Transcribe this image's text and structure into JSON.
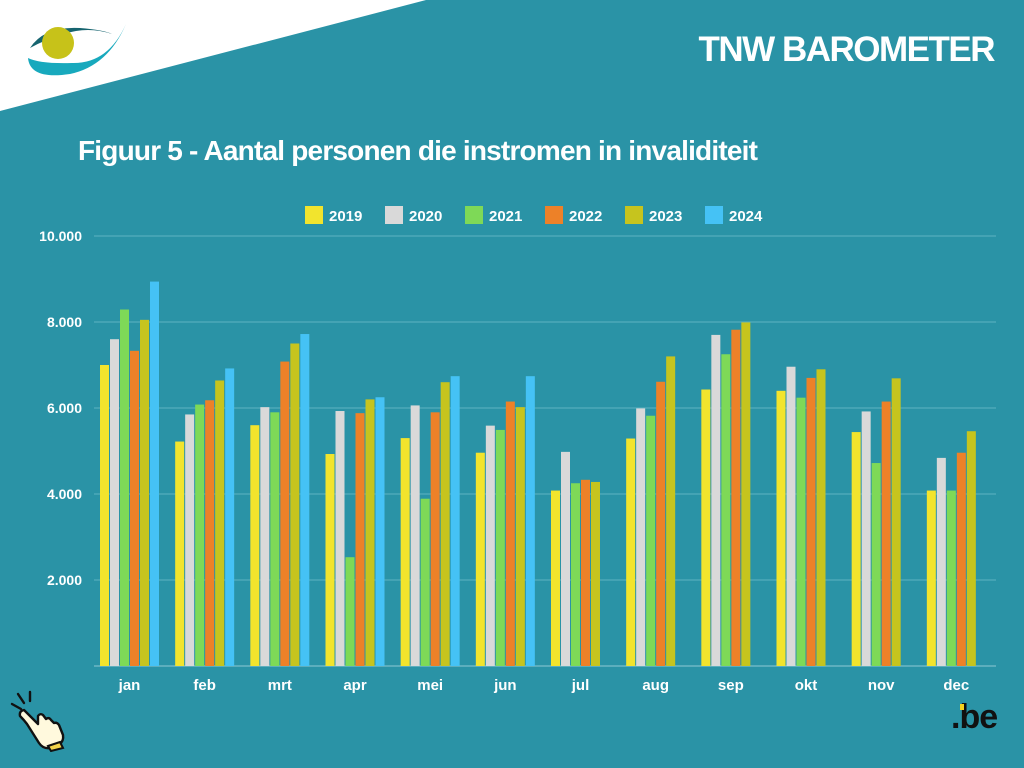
{
  "header": {
    "brand": "TNW BAROMETER",
    "title": "Figuur 5 - Aantal personen die instromen in invaliditeit"
  },
  "footer": {
    "be_logo_text": ".be"
  },
  "colors": {
    "background": "#2a93a6",
    "grid": "#5eb3c2",
    "axis": "#8fcad4",
    "text": "#ffffff"
  },
  "chart_data": {
    "type": "bar",
    "title": "Figuur 5 - Aantal personen die instromen in invaliditeit",
    "xlabel": "",
    "ylabel": "",
    "ylim": [
      0,
      10000
    ],
    "yticks": [
      2000,
      4000,
      6000,
      8000,
      10000
    ],
    "ytick_labels": [
      "2.000",
      "4.000",
      "6.000",
      "8.000",
      "10.000"
    ],
    "grid": true,
    "legend_position": "top-center",
    "categories": [
      "jan",
      "feb",
      "mrt",
      "apr",
      "mei",
      "jun",
      "jul",
      "aug",
      "sep",
      "okt",
      "nov",
      "dec"
    ],
    "series": [
      {
        "name": "2019",
        "color": "#f2e42d",
        "values": [
          7000,
          5220,
          5600,
          4930,
          5300,
          4960,
          4080,
          5290,
          6430,
          6400,
          5440,
          4080
        ]
      },
      {
        "name": "2020",
        "color": "#d9d9d9",
        "values": [
          7600,
          5850,
          6020,
          5930,
          6060,
          5590,
          4980,
          5990,
          7700,
          6960,
          5920,
          4840
        ]
      },
      {
        "name": "2021",
        "color": "#7ed957",
        "values": [
          8290,
          6080,
          5900,
          2530,
          3890,
          5490,
          4250,
          5820,
          7250,
          6240,
          4720,
          4080
        ]
      },
      {
        "name": "2022",
        "color": "#ed8128",
        "values": [
          7330,
          6180,
          7080,
          5880,
          5900,
          6150,
          4330,
          6610,
          7820,
          6700,
          6150,
          4960
        ]
      },
      {
        "name": "2023",
        "color": "#c6c41e",
        "values": [
          8050,
          6640,
          7500,
          6200,
          6600,
          6020,
          4280,
          7200,
          7990,
          6900,
          6690,
          5460
        ]
      },
      {
        "name": "2024",
        "color": "#45c2f5",
        "values": [
          8940,
          6920,
          7720,
          6250,
          6740,
          6740,
          null,
          null,
          null,
          null,
          null,
          null
        ]
      }
    ]
  }
}
